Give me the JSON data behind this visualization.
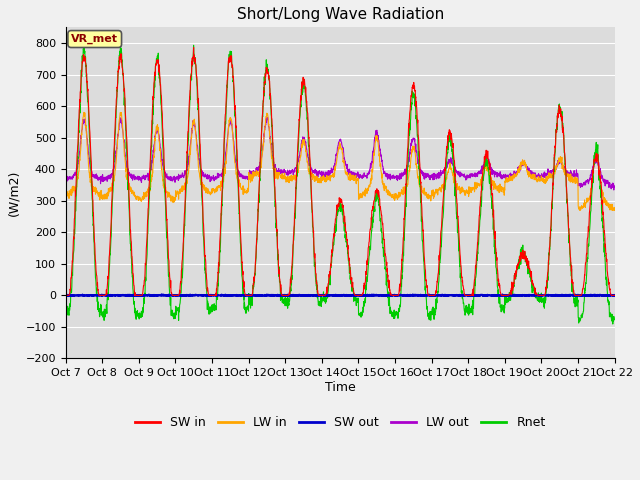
{
  "title": "Short/Long Wave Radiation",
  "xlabel": "Time",
  "ylabel": "(W/m2)",
  "ylim": [
    -200,
    850
  ],
  "yticks": [
    -200,
    -100,
    0,
    100,
    200,
    300,
    400,
    500,
    600,
    700,
    800
  ],
  "xlim": [
    0,
    15
  ],
  "xtick_labels": [
    "Oct 7",
    "Oct 8",
    "Oct 9",
    "Oct 10",
    "Oct 11",
    "Oct 12",
    "Oct 13",
    "Oct 14",
    "Oct 15",
    "Oct 16",
    "Oct 17",
    "Oct 18",
    "Oct 19",
    "Oct 20",
    "Oct 21",
    "Oct 22"
  ],
  "station_label": "VR_met",
  "colors": {
    "SW_in": "#ff0000",
    "LW_in": "#ffa500",
    "SW_out": "#0000cc",
    "LW_out": "#aa00cc",
    "Rnet": "#00cc00"
  },
  "legend_labels": [
    "SW in",
    "LW in",
    "SW out",
    "LW out",
    "Rnet"
  ],
  "fig_facecolor": "#f0f0f0",
  "axes_facecolor": "#dcdcdc",
  "grid_color": "#ffffff",
  "title_fontsize": 11,
  "tick_fontsize": 8
}
